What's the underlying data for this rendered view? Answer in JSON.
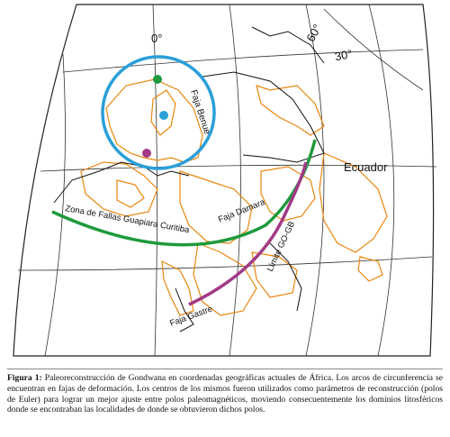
{
  "map": {
    "labels": {
      "lon_0": "0°",
      "lat_60": "60°",
      "lat_30": "30°",
      "equator": "Ecuador",
      "benue": "Faja Benue",
      "guapiara": "Zona de Fallas Guapiara Curitiba",
      "damara": "Faja Damara",
      "gogo": "Límite GO-GB",
      "gastre": "Faja Gastre"
    },
    "colors": {
      "circle": "#2a9fd8",
      "arc_green": "#1e9a3c",
      "arc_purple": "#a23a86",
      "outline": "#e8860f",
      "dot_green": "#1e9a3c",
      "dot_blue": "#2a9fd8",
      "dot_purple": "#a23a86"
    }
  },
  "caption": {
    "label": "Figura 1:",
    "text": " Paleoreconstrucción de Gondwana en coordenadas geográficas actuales de África. Los arcos de circunferencia se encuentran en fajas de deformación. Los centros de los mismos fueron utilizados como parámetros de reconstrucción (polos de Euler) para lograr un mejor ajuste entre polos paleomagnéticos, moviendo consecuentemente los dominios litosféricos donde se encontraban las localidades de donde se obtuvieron dichos polos."
  }
}
